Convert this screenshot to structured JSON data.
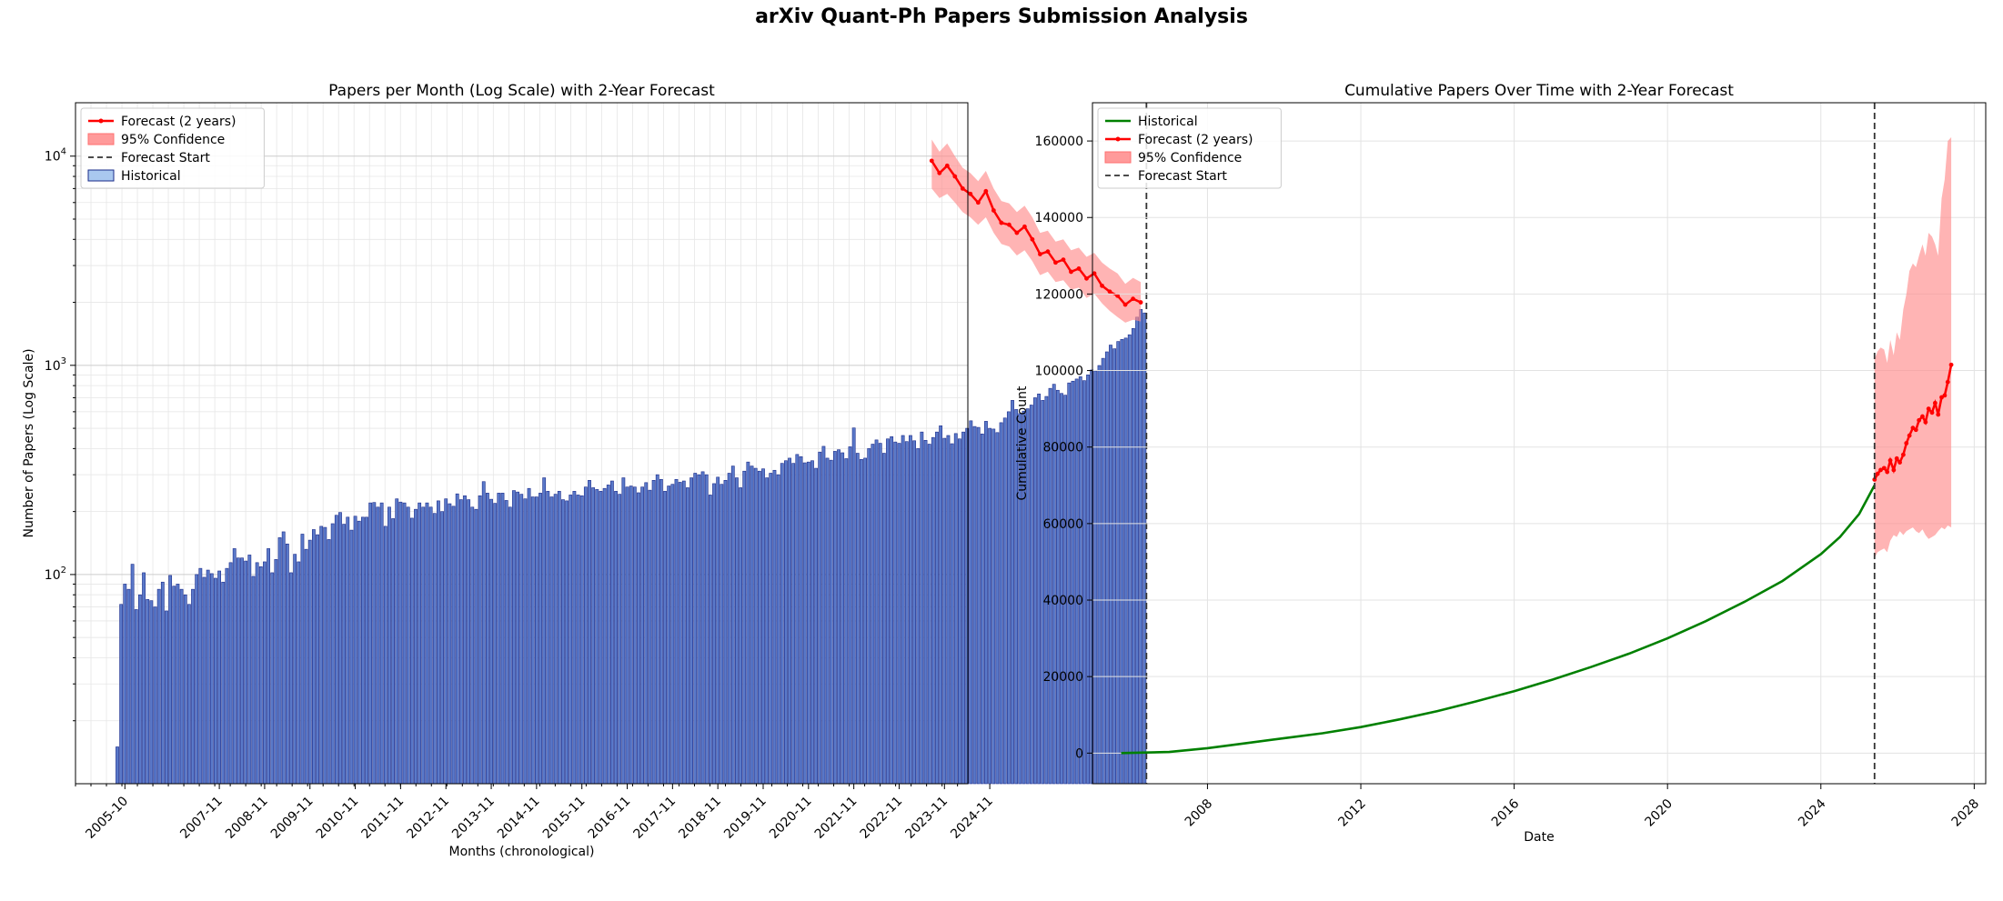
{
  "figure": {
    "suptitle": "arXiv Quant-Ph Papers Submission Analysis"
  },
  "chart_data": [
    {
      "type": "bar",
      "title": "Papers per Month (Log Scale) with 2-Year Forecast",
      "xlabel": "Months (chronological)",
      "ylabel": "Number of Papers (Log Scale)",
      "yscale": "log",
      "ylim": [
        10,
        18000
      ],
      "ytick_labels": [
        "10^2",
        "10^3",
        "10^4"
      ],
      "ytick_values": [
        100,
        1000,
        10000
      ],
      "xtick_labels": [
        "2005-10",
        "2007-11",
        "2008-11",
        "2009-11",
        "2010-11",
        "2011-11",
        "2012-11",
        "2013-11",
        "2014-11",
        "2015-11",
        "2016-11",
        "2017-11",
        "2018-11",
        "2019-11",
        "2020-11",
        "2021-11",
        "2022-11",
        "2023-11",
        "2024-11"
      ],
      "grid": true,
      "legend_position": "top-left",
      "legend": [
        {
          "label": "Forecast (2 years)",
          "kind": "line-marker",
          "color": "#ff0000"
        },
        {
          "label": "95% Confidence",
          "kind": "patch",
          "color": "#ff9a9a"
        },
        {
          "label": "Forecast Start",
          "kind": "dashed",
          "color": "#333333"
        },
        {
          "label": "Historical",
          "kind": "patch",
          "color": "#a9c8ef"
        }
      ],
      "historical_start_month": "2005-08",
      "forecast_start_month": "2025-05",
      "colors": {
        "bar_fill": "#5a79c9",
        "bar_edge": "#1a2b8a",
        "forecast": "#ff0000",
        "band": "#ff8c8c"
      },
      "historical_values": [
        15,
        72,
        90,
        85,
        112,
        68,
        80,
        102,
        76,
        75,
        70,
        85,
        92,
        67,
        99,
        88,
        90,
        85,
        80,
        72,
        85,
        100,
        107,
        97,
        105,
        101,
        96,
        104,
        92,
        107,
        114,
        133,
        120,
        120,
        116,
        124,
        98,
        114,
        109,
        115,
        133,
        102,
        118,
        150,
        160,
        140,
        102,
        125,
        115,
        156,
        132,
        146,
        164,
        155,
        170,
        168,
        147,
        175,
        192,
        198,
        174,
        188,
        163,
        190,
        180,
        188,
        188,
        220,
        221,
        210,
        220,
        170,
        210,
        185,
        230,
        222,
        220,
        210,
        186,
        205,
        220,
        210,
        220,
        210,
        196,
        225,
        200,
        230,
        218,
        212,
        243,
        228,
        238,
        228,
        210,
        205,
        238,
        278,
        245,
        229,
        219,
        245,
        245,
        226,
        210,
        252,
        248,
        242,
        230,
        258,
        235,
        235,
        245,
        290,
        250,
        235,
        242,
        250,
        228,
        225,
        240,
        250,
        240,
        238,
        262,
        282,
        260,
        255,
        250,
        258,
        268,
        280,
        250,
        242,
        290,
        262,
        265,
        262,
        246,
        262,
        275,
        253,
        282,
        300,
        285,
        250,
        265,
        270,
        285,
        276,
        280,
        260,
        290,
        305,
        300,
        310,
        300,
        240,
        272,
        292,
        270,
        282,
        305,
        330,
        290,
        260,
        312,
        345,
        330,
        322,
        312,
        320,
        290,
        305,
        315,
        300,
        340,
        350,
        360,
        340,
        375,
        366,
        342,
        345,
        350,
        322,
        385,
        410,
        360,
        352,
        388,
        395,
        382,
        358,
        408,
        502,
        380,
        355,
        360,
        400,
        420,
        440,
        424,
        380,
        445,
        456,
        430,
        424,
        462,
        432,
        462,
        436,
        400,
        480,
        438,
        420,
        452,
        480,
        514,
        448,
        462,
        422,
        472,
        445,
        480,
        500,
        543,
        510,
        505,
        470,
        540,
        500,
        496,
        477,
        532,
        560,
        600,
        680,
        615,
        588,
        604,
        620,
        646,
        700,
        730,
        680,
        710,
        776,
        812,
        760,
        734,
        720,
        824,
        840,
        860,
        882,
        845,
        900,
        950,
        940,
        998,
        1080,
        1160,
        1250,
        1200,
        1300,
        1330,
        1350,
        1400,
        1500,
        1700,
        1850,
        1780
      ],
      "forecast_values": [
        2000,
        2080,
        1950,
        2150,
        2250,
        2400,
        2750,
        2600,
        2900,
        2800,
        3200,
        3100,
        3500,
        3400,
        4000,
        4600,
        4300,
        4700,
        4800,
        5500,
        6800,
        6000,
        6600,
        7000,
        8000,
        9000,
        8300,
        9500
      ],
      "forecast_lower": [
        1620,
        1650,
        1600,
        1700,
        1820,
        1980,
        2200,
        2100,
        2350,
        2300,
        2550,
        2500,
        2800,
        2700,
        3150,
        3550,
        3350,
        3700,
        3800,
        4300,
        5100,
        4700,
        5100,
        5400,
        6000,
        6600,
        6300,
        7000
      ],
      "forecast_upper": [
        2500,
        2620,
        2450,
        2750,
        2900,
        3100,
        3450,
        3300,
        3650,
        3550,
        4000,
        3900,
        4400,
        4300,
        5100,
        5800,
        5400,
        5950,
        6100,
        7000,
        8500,
        7600,
        8300,
        8800,
        10000,
        11500,
        10500,
        12000
      ]
    },
    {
      "type": "line",
      "title": "Cumulative Papers Over Time with 2-Year Forecast",
      "xlabel": "Date",
      "ylabel": "Cumulative Count",
      "xlim": [
        2005.0,
        2028.3
      ],
      "ylim": [
        -8000,
        170000
      ],
      "xticks": [
        2008,
        2012,
        2016,
        2020,
        2024,
        2028
      ],
      "yticks": [
        0,
        20000,
        40000,
        60000,
        80000,
        100000,
        120000,
        140000,
        160000
      ],
      "grid": true,
      "legend_position": "top-left",
      "legend": [
        {
          "label": "Historical",
          "kind": "line",
          "color": "#008000"
        },
        {
          "label": "Forecast (2 years)",
          "kind": "line-marker",
          "color": "#ff0000"
        },
        {
          "label": "95% Confidence",
          "kind": "patch",
          "color": "#ff9a9a"
        },
        {
          "label": "Forecast Start",
          "kind": "dashed",
          "color": "#333333"
        }
      ],
      "forecast_start": 2025.4,
      "colors": {
        "historical": "#008000",
        "forecast": "#ff0000",
        "band": "#ff8c8c"
      },
      "historical": {
        "x": [
          2005.75,
          2007.0,
          2008.0,
          2009.0,
          2010.0,
          2011.0,
          2012.0,
          2013.0,
          2014.0,
          2015.0,
          2016.0,
          2017.0,
          2018.0,
          2019.0,
          2020.0,
          2021.0,
          2022.0,
          2023.0,
          2024.0,
          2024.5,
          2025.0,
          2025.4
        ],
        "y": [
          0,
          300,
          1300,
          2600,
          3900,
          5200,
          6800,
          8800,
          11000,
          13500,
          16200,
          19200,
          22500,
          26000,
          30000,
          34500,
          39500,
          45000,
          52000,
          56500,
          62500,
          70000
        ]
      },
      "forecast": {
        "x": [
          2025.4,
          2025.48,
          2025.56,
          2025.65,
          2025.73,
          2025.81,
          2025.9,
          2025.98,
          2026.06,
          2026.15,
          2026.23,
          2026.31,
          2026.4,
          2026.48,
          2026.56,
          2026.65,
          2026.73,
          2026.81,
          2026.9,
          2026.98,
          2027.06,
          2027.15,
          2027.23,
          2027.31,
          2027.4
        ],
        "y": [
          71500,
          73000,
          74000,
          74500,
          73500,
          76500,
          74000,
          77000,
          76000,
          78000,
          81000,
          83000,
          85000,
          84500,
          87000,
          88000,
          86500,
          90000,
          89000,
          91500,
          88500,
          93000,
          93500,
          97000,
          101500
        ],
        "lower": [
          51000,
          52500,
          53000,
          53500,
          52500,
          55500,
          57000,
          56500,
          58000,
          57000,
          58000,
          58500,
          59000,
          58000,
          57500,
          58500,
          57000,
          56000,
          56500,
          57000,
          58000,
          59000,
          58500,
          59500,
          59000
        ],
        "upper": [
          103000,
          105000,
          106000,
          105500,
          102000,
          108000,
          104000,
          110000,
          108000,
          116000,
          120000,
          126000,
          128000,
          127000,
          130000,
          133000,
          130000,
          136000,
          135000,
          133000,
          130000,
          145000,
          150000,
          160000,
          161000
        ]
      }
    }
  ]
}
